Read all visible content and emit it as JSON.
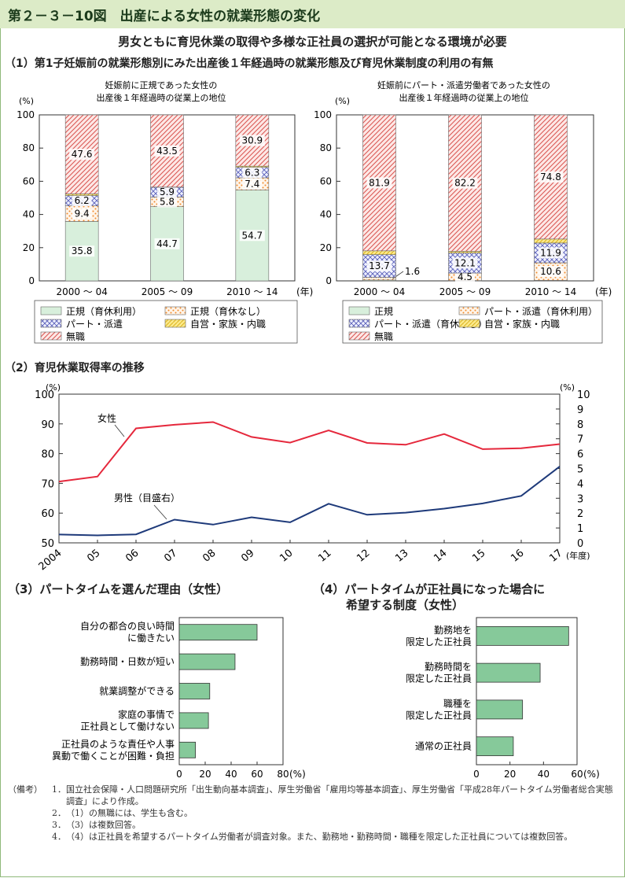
{
  "header": {
    "title": "第２－３－10図　出産による女性の就業形態の変化"
  },
  "subtitle": "男女ともに育児休業の取得や多様な正社員の選択が可能となる環境が必要",
  "section1_title": "（1）第1子妊娠前の就業形態別にみた出産後１年経過時の就業形態及び育児休業制度の利用の有無",
  "section2_title": "（2）育児休業取得率の推移",
  "section3_title": "（3）パートタイムを選んだ理由（女性）",
  "section4_title_line1": "（4）パートタイムが正社員になった場合に",
  "section4_title_line2": "希望する制度（女性）",
  "colors": {
    "green": "#cfe8d3",
    "orange": "#f6a04d",
    "blue": "#7a7fc6",
    "yellow": "#f0d24a",
    "red": "#e06a6a",
    "female_line": "#e5283c",
    "male_line": "#1e3a7a",
    "hbar": "#86c99a"
  },
  "chart_data": [
    {
      "type": "bar",
      "stacked": true,
      "title_line1": "妊娠前に正規であった女性の",
      "title_line2": "出産後１年経過時の従業上の地位",
      "ylabel": "(%)",
      "ylim": [
        0,
        100
      ],
      "yticks": [
        0,
        20,
        40,
        60,
        80,
        100
      ],
      "categories": [
        "2000 ～ 04",
        "2005 ～ 09",
        "2010 ～ 14"
      ],
      "x_unit": "(年)",
      "series": [
        {
          "name": "正規（育休利用）",
          "values": [
            35.8,
            44.7,
            54.7
          ],
          "pattern": "green",
          "labels": [
            "35.8",
            "44.7",
            "54.7"
          ]
        },
        {
          "name": "正規（育休なし）",
          "values": [
            9.4,
            5.8,
            7.4
          ],
          "pattern": "orange",
          "labels": [
            "9.4",
            "5.8",
            "7.4"
          ]
        },
        {
          "name": "パート・派遣",
          "values": [
            6.2,
            5.9,
            6.3
          ],
          "pattern": "blue",
          "labels": [
            "6.2",
            "5.9",
            "6.3"
          ]
        },
        {
          "name": "自営・家族・内職",
          "values": [
            1.0,
            0.1,
            0.7
          ],
          "pattern": "yellow",
          "labels": [
            "",
            "",
            ""
          ]
        },
        {
          "name": "無職",
          "values": [
            47.6,
            43.5,
            30.9
          ],
          "pattern": "red",
          "labels": [
            "47.6",
            "43.5",
            "30.9"
          ]
        }
      ],
      "legend_order": [
        "正規（育休利用）",
        "正規（育休なし）",
        "パート・派遣",
        "自営・家族・内職",
        "無職"
      ]
    },
    {
      "type": "bar",
      "stacked": true,
      "title_line1": "妊娠前にパート・派遣労働者であった女性の",
      "title_line2": "出産後１年経過時の従業上の地位",
      "ylabel": "(%)",
      "ylim": [
        0,
        100
      ],
      "yticks": [
        0,
        20,
        40,
        60,
        80,
        100
      ],
      "categories": [
        "2000 ～ 04",
        "2005 ～ 09",
        "2010 ～ 14"
      ],
      "x_unit": "(年)",
      "series": [
        {
          "name": "正規",
          "values": [
            0.5,
            0.2,
            0.3
          ],
          "pattern": "green",
          "labels": [
            "",
            "",
            ""
          ]
        },
        {
          "name": "パート・派遣（育休利用）",
          "values": [
            1.6,
            4.5,
            10.6
          ],
          "pattern": "orange",
          "labels": [
            "1.6",
            "4.5",
            "10.6"
          ]
        },
        {
          "name": "パート・派遣（育休なし）",
          "values": [
            13.7,
            12.1,
            11.9
          ],
          "pattern": "blue",
          "labels": [
            "13.7",
            "12.1",
            "11.9"
          ]
        },
        {
          "name": "自営・家族・内職",
          "values": [
            2.3,
            1.0,
            2.4
          ],
          "pattern": "yellow",
          "labels": [
            "",
            "",
            ""
          ]
        },
        {
          "name": "無職",
          "values": [
            81.9,
            82.2,
            74.8
          ],
          "pattern": "red",
          "labels": [
            "81.9",
            "82.2",
            "74.8"
          ]
        }
      ],
      "legend_order": [
        "正規",
        "パート・派遣（育休利用）",
        "パート・派遣（育休なし）",
        "自営・家族・内職",
        "無職"
      ]
    },
    {
      "type": "line",
      "x": [
        "2004",
        "05",
        "06",
        "07",
        "08",
        "09",
        "10",
        "11",
        "12",
        "13",
        "14",
        "15",
        "16",
        "17"
      ],
      "x_unit": "(年度)",
      "ylabel_left": "(%)",
      "ylabel_right": "(%)",
      "ylim_left": [
        50,
        100
      ],
      "yticks_left": [
        50,
        60,
        70,
        80,
        90,
        100
      ],
      "ylim_right": [
        0,
        10
      ],
      "yticks_right": [
        0,
        1,
        2,
        3,
        4,
        5,
        6,
        7,
        8,
        9,
        10
      ],
      "series": [
        {
          "name": "女性",
          "axis": "left",
          "values": [
            70.6,
            72.3,
            88.5,
            89.7,
            90.6,
            85.6,
            83.7,
            87.8,
            83.6,
            83.0,
            86.6,
            81.5,
            81.8,
            83.2
          ]
        },
        {
          "name": "男性（目盛右）",
          "axis": "right",
          "values": [
            0.56,
            0.5,
            0.57,
            1.56,
            1.23,
            1.72,
            1.38,
            2.63,
            1.89,
            2.03,
            2.3,
            2.65,
            3.16,
            5.14
          ]
        }
      ]
    },
    {
      "type": "bar",
      "orientation": "horizontal",
      "categories": [
        [
          "自分の都合の良い時間",
          "に働きたい"
        ],
        [
          "勤務時間・日数が短い"
        ],
        [
          "就業調整ができる"
        ],
        [
          "家庭の事情で",
          "正社員として働けない"
        ],
        [
          "正社員のような責任や人事",
          "異動で働くことが困難・負担"
        ]
      ],
      "values": [
        60.0,
        43.0,
        23.5,
        22.5,
        12.5
      ],
      "xlim": [
        0,
        80
      ],
      "xticks": [
        0,
        20,
        40,
        60,
        80
      ],
      "x_unit": "(%)"
    },
    {
      "type": "bar",
      "orientation": "horizontal",
      "categories": [
        [
          "勤務地を",
          "限定した正社員"
        ],
        [
          "勤務時間を",
          "限定した正社員"
        ],
        [
          "職種を",
          "限定した正社員"
        ],
        [
          "通常の正社員"
        ]
      ],
      "values": [
        55.0,
        38.0,
        27.5,
        22.0
      ],
      "xlim": [
        0,
        60
      ],
      "xticks": [
        0,
        20,
        40,
        60
      ],
      "x_unit": "(%)"
    }
  ],
  "notes": {
    "label": "（備考）",
    "items": [
      {
        "num": "1．",
        "text": "国立社会保障・人口問題研究所「出生動向基本調査」、厚生労働省「雇用均等基本調査」、厚生労働省「平成28年パートタイム労働者総合実態調査」により作成。"
      },
      {
        "num": "2．",
        "text": "（1）の無職には、学生も含む。"
      },
      {
        "num": "3．",
        "text": "（3）は複数回答。"
      },
      {
        "num": "4．",
        "text": "（4）は正社員を希望するパートタイム労働者が調査対象。また、勤務地・勤務時間・職種を限定した正社員については複数回答。"
      }
    ]
  }
}
